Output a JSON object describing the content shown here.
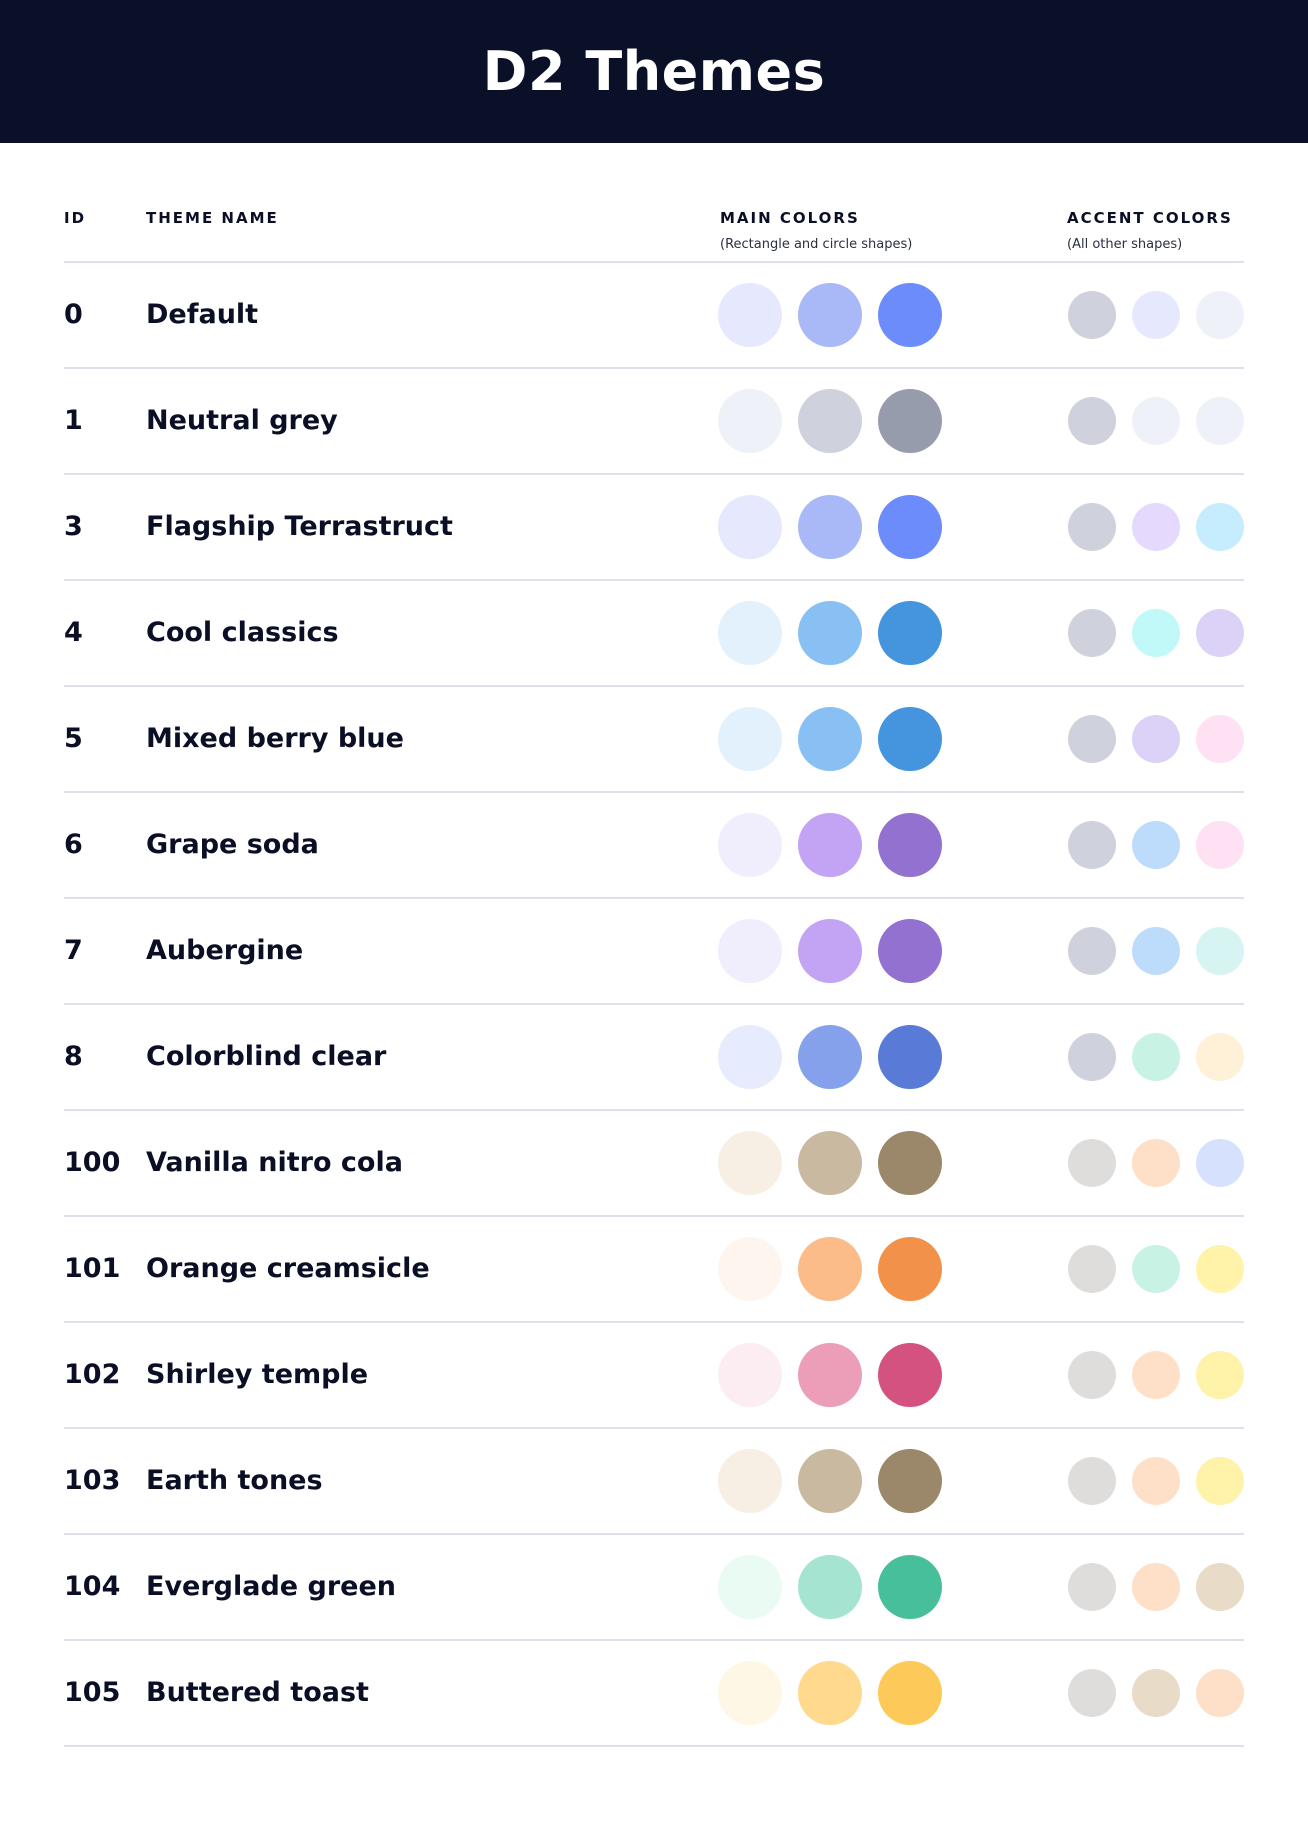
{
  "title": "D2 Themes",
  "columns": {
    "id": "ID",
    "name": "THEME NAME",
    "main": "MAIN COLORS",
    "main_sub": "(Rectangle and circle shapes)",
    "accent": "ACCENT COLORS",
    "accent_sub": "(All other shapes)"
  },
  "themes": [
    {
      "id": "0",
      "name": "Default",
      "main": [
        "#E6E9FD",
        "#A9B8F7",
        "#6D8CFC"
      ],
      "accent": [
        "#CFD2DD",
        "#E6E9FD",
        "#EEF1F8"
      ]
    },
    {
      "id": "1",
      "name": "Neutral grey",
      "main": [
        "#EEF1F8",
        "#CFD2DD",
        "#979CAC"
      ],
      "accent": [
        "#CFD2DD",
        "#EEF1F8",
        "#EEF1F8"
      ]
    },
    {
      "id": "3",
      "name": "Flagship Terrastruct",
      "main": [
        "#E6E9FD",
        "#A9B8F7",
        "#6D8CFC"
      ],
      "accent": [
        "#CFD2DD",
        "#E5DAFD",
        "#C6EDFD"
      ]
    },
    {
      "id": "4",
      "name": "Cool classics",
      "main": [
        "#E3F1FC",
        "#89C0F3",
        "#4495DD"
      ],
      "accent": [
        "#CFD2DD",
        "#C0F9F7",
        "#DCD2F8"
      ]
    },
    {
      "id": "5",
      "name": "Mixed berry blue",
      "main": [
        "#E3F1FC",
        "#89C0F3",
        "#4495DD"
      ],
      "accent": [
        "#CFD2DD",
        "#DCD2F8",
        "#FEE1F3"
      ]
    },
    {
      "id": "6",
      "name": "Grape soda",
      "main": [
        "#F0EDFD",
        "#C3A3F3",
        "#9371D0"
      ],
      "accent": [
        "#CFD2DD",
        "#BDDCFC",
        "#FEE1F3"
      ]
    },
    {
      "id": "7",
      "name": "Aubergine",
      "main": [
        "#F0EDFD",
        "#C3A3F3",
        "#9371D0"
      ],
      "accent": [
        "#CFD2DD",
        "#BDDCFC",
        "#D6F4F1"
      ]
    },
    {
      "id": "8",
      "name": "Colorblind clear",
      "main": [
        "#E6EBFD",
        "#86A1EB",
        "#597AD7"
      ],
      "accent": [
        "#CFD2DD",
        "#C8F2E4",
        "#FFF1D7"
      ]
    },
    {
      "id": "100",
      "name": "Vanilla nitro cola",
      "main": [
        "#F8EFE4",
        "#C9B9A0",
        "#9B8769"
      ],
      "accent": [
        "#DEDDDB",
        "#FEE0C8",
        "#D6E1FD"
      ]
    },
    {
      "id": "101",
      "name": "Orange creamsicle",
      "main": [
        "#FEF5EF",
        "#FBBC8A",
        "#F2914A"
      ],
      "accent": [
        "#DEDDDB",
        "#C8F2E4",
        "#FEF3A8"
      ]
    },
    {
      "id": "102",
      "name": "Shirley temple",
      "main": [
        "#FCEDF3",
        "#EC9DB8",
        "#D4527F"
      ],
      "accent": [
        "#DEDDDB",
        "#FEE0C8",
        "#FEF3A8"
      ]
    },
    {
      "id": "103",
      "name": "Earth tones",
      "main": [
        "#F8EFE4",
        "#C9B9A0",
        "#9B8769"
      ],
      "accent": [
        "#DEDDDB",
        "#FEE0C8",
        "#FEF3A8"
      ]
    },
    {
      "id": "104",
      "name": "Everglade green",
      "main": [
        "#E9FBF3",
        "#A5E4D1",
        "#48BF9B"
      ],
      "accent": [
        "#DEDDDB",
        "#FEE0C8",
        "#E8DBC7"
      ]
    },
    {
      "id": "105",
      "name": "Buttered toast",
      "main": [
        "#FEF7E6",
        "#FED98E",
        "#FDC958"
      ],
      "accent": [
        "#DEDDDB",
        "#E8DBC7",
        "#FEE0C8"
      ]
    }
  ]
}
